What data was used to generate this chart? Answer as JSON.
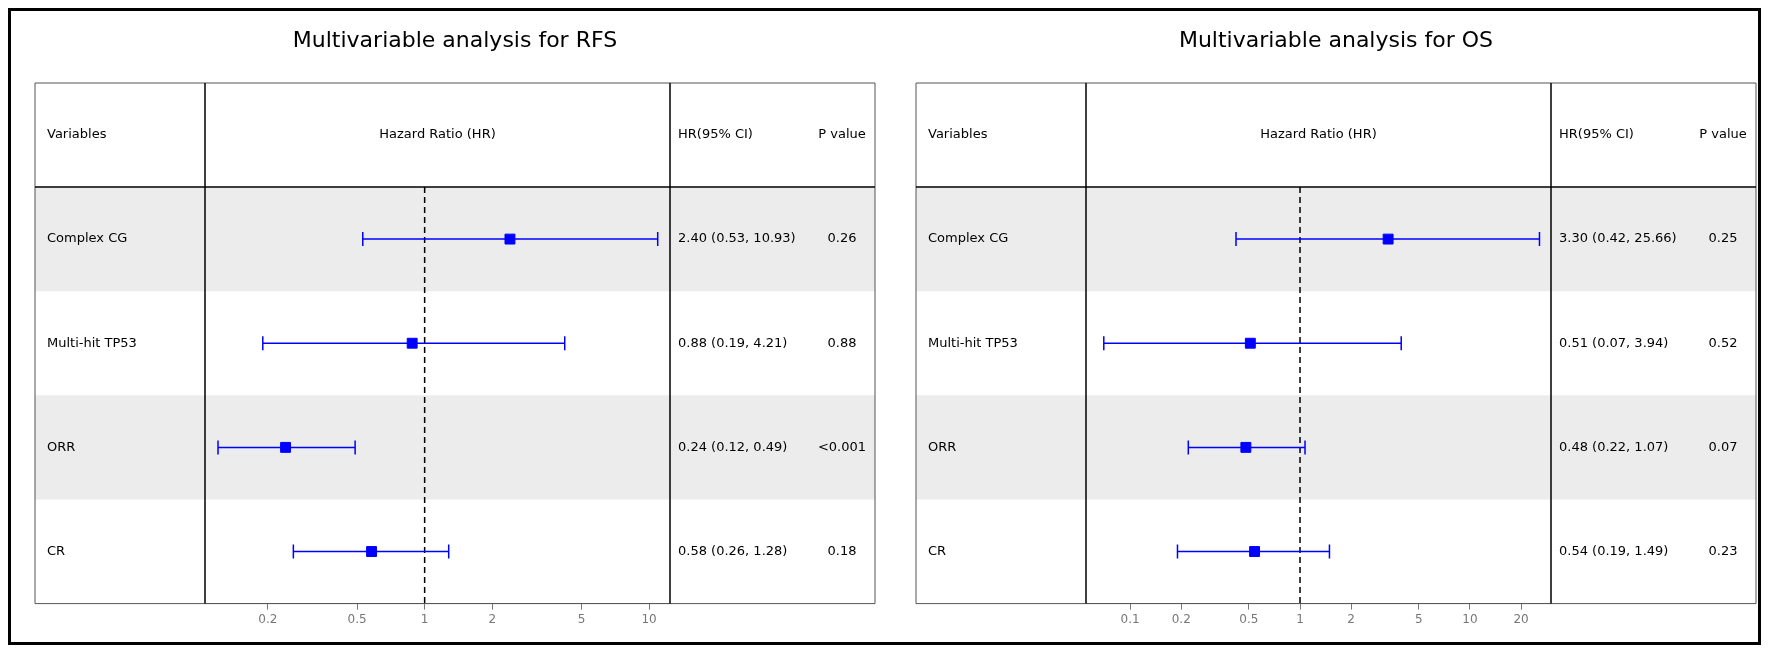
{
  "chart_data": [
    {
      "type": "scatter",
      "title": "Multivariable analysis for RFS",
      "xlabel": "Hazard Ratio (HR)",
      "ylabel": "Variables",
      "orientation": "horizontal",
      "categories": [
        "Complex CG",
        "Multi-hit TP53",
        "ORR",
        "CR"
      ],
      "series": [
        {
          "color": "#0000ff",
          "values": [
            2.4,
            0.88,
            0.24,
            0.58
          ],
          "errors": [
            [
              0.53,
              10.93
            ],
            [
              0.19,
              4.21
            ],
            [
              0.12,
              0.49
            ],
            [
              0.26,
              1.28
            ]
          ]
        }
      ],
      "annotations": [
        "HR(95% CI)",
        "P value",
        "2.40 (0.53, 10.93)",
        "0.26",
        "0.88 (0.19, 4.21)",
        "0.88",
        "0.24 (0.12, 0.49)",
        "<0.001",
        "0.58 (0.26, 1.28)",
        "0.18"
      ],
      "xlim": [
        0.105,
        12.4
      ],
      "xticks": [
        0.2,
        0.5,
        1,
        2,
        5,
        10
      ],
      "log": "x",
      "grid": false,
      "legend": false,
      "marker": "square",
      "ref_lines": [
        {
          "axis": "x",
          "value": 1,
          "color": "#000000",
          "line_style": "dashed"
        }
      ]
    },
    {
      "type": "scatter",
      "title": "Multivariable analysis for OS",
      "xlabel": "Hazard Ratio (HR)",
      "ylabel": "Variables",
      "orientation": "horizontal",
      "categories": [
        "Complex CG",
        "Multi-hit TP53",
        "ORR",
        "CR"
      ],
      "series": [
        {
          "color": "#0000ff",
          "values": [
            3.3,
            0.51,
            0.48,
            0.54
          ],
          "errors": [
            [
              0.42,
              25.66
            ],
            [
              0.07,
              3.94
            ],
            [
              0.22,
              1.07
            ],
            [
              0.19,
              1.49
            ]
          ]
        }
      ],
      "annotations": [
        "HR(95% CI)",
        "P value",
        "3.30 (0.42, 25.66)",
        "0.25",
        "0.51 (0.07, 3.94)",
        "0.52",
        "0.48 (0.22, 1.07)",
        "0.07",
        "0.54 (0.19, 1.49)",
        "0.23"
      ],
      "xlim": [
        0.055,
        30
      ],
      "xticks": [
        0.1,
        0.2,
        0.5,
        1,
        2,
        5,
        10,
        20
      ],
      "log": "x",
      "grid": false,
      "legend": false,
      "marker": "square",
      "ref_lines": [
        {
          "axis": "x",
          "value": 1,
          "color": "#000000",
          "line_style": "dashed"
        }
      ]
    }
  ]
}
